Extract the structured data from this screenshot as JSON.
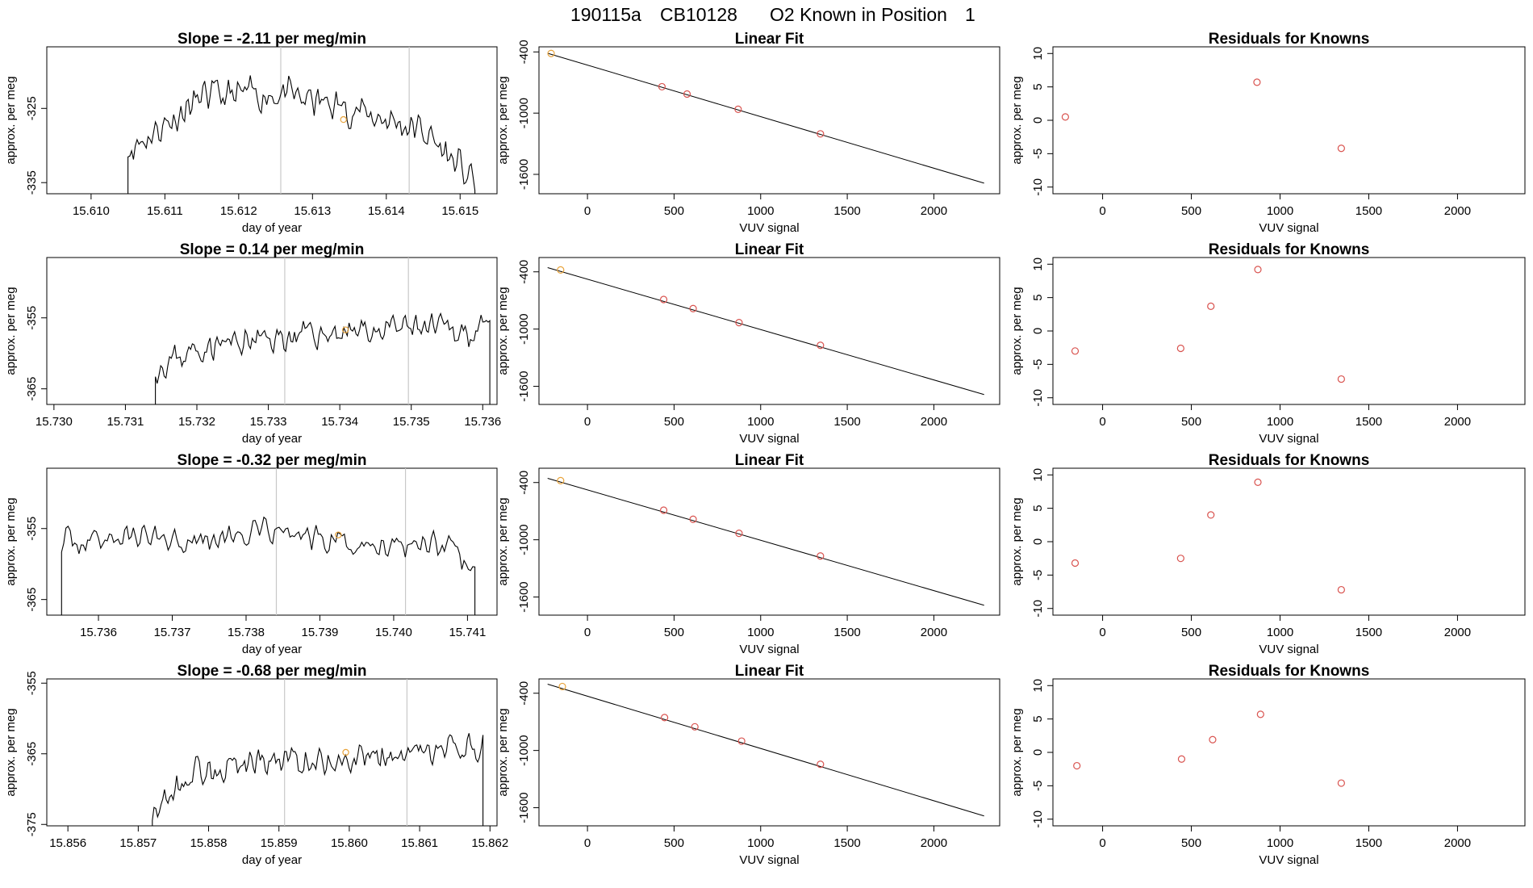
{
  "figure_title": {
    "sample": "190115a",
    "tank": "CB10128",
    "desc": "O2 Known in Position",
    "position": "1"
  },
  "colors": {
    "known_point": "#e8a33a",
    "fit_point": "#d9534f",
    "trace": "#000000",
    "marker_line": "#c8c8c8"
  },
  "chart_data": {
    "rows": [
      {
        "time": {
          "type": "line",
          "title": "Slope =  -2.11  per meg/min",
          "xlabel": "day of year",
          "ylabel": "approx. per meg",
          "xlim": [
            15.6094,
            15.6155
          ],
          "ylim": [
            -336.5,
            -316.7
          ],
          "xticks": [
            15.61,
            15.611,
            15.612,
            15.613,
            15.614,
            15.615
          ],
          "xtick_labels": [
            "15.610",
            "15.611",
            "15.612",
            "15.613",
            "15.614",
            "15.615"
          ],
          "yticks": [
            -325,
            -335
          ],
          "ytick_labels": [
            "-325",
            "-335"
          ],
          "vlines": [
            15.61257,
            15.61431
          ],
          "known_point": [
            15.61342,
            -326.5
          ],
          "trace_x": [
            15.6106,
            15.6115,
            15.6125,
            15.6135,
            15.6145,
            15.6152
          ],
          "trace_y": [
            -330,
            -323.5,
            -323,
            -325,
            -328,
            -335
          ],
          "trace_amp": 2.8,
          "trace_start": 15.6105,
          "trace_end": 15.6152,
          "trace_seed": 11
        },
        "fit": {
          "type": "scatter",
          "title": "Linear Fit",
          "xlabel": "VUV signal",
          "ylabel": "approx. per meg",
          "xlim": [
            -280,
            2380
          ],
          "ylim": [
            -1790,
            -350
          ],
          "xticks": [
            0,
            500,
            1000,
            1500,
            2000
          ],
          "xtick_labels": [
            "0",
            "500",
            "1000",
            "1500",
            "2000"
          ],
          "yticks": [
            -400,
            -1000,
            -1600
          ],
          "ytick_labels": [
            "-400",
            "-1000",
            "-1600"
          ],
          "line": [
            [
              -230,
              -413
            ],
            [
              2290,
              -1686
            ]
          ],
          "known_point": [
            -210,
            -415
          ],
          "points": [
            [
              430,
              -741
            ],
            [
              575,
              -813
            ],
            [
              870,
              -962
            ],
            [
              1345,
              -1203
            ]
          ]
        },
        "resid": {
          "type": "scatter",
          "title": "Residuals for Knowns",
          "xlabel": "VUV signal",
          "ylabel": "approx. per meg",
          "xlim": [
            -280,
            2380
          ],
          "ylim": [
            -11,
            11
          ],
          "xticks": [
            0,
            500,
            1000,
            1500,
            2000
          ],
          "xtick_labels": [
            "0",
            "500",
            "1000",
            "1500",
            "2000"
          ],
          "yticks": [
            10,
            5,
            0,
            -5,
            -10
          ],
          "ytick_labels": [
            "10",
            "5",
            "0",
            "-5",
            "-10"
          ],
          "points": [
            [
              -210,
              0.5
            ],
            [
              870,
              5.7
            ],
            [
              1345,
              -4.2
            ]
          ]
        }
      },
      {
        "time": {
          "type": "line",
          "title": "Slope =  0.14  per meg/min",
          "xlabel": "day of year",
          "ylabel": "approx. per meg",
          "xlim": [
            15.7299,
            15.7362
          ],
          "ylim": [
            -367.2,
            -346.5
          ],
          "xticks": [
            15.73,
            15.731,
            15.732,
            15.733,
            15.734,
            15.735,
            15.736
          ],
          "xtick_labels": [
            "15.730",
            "15.731",
            "15.732",
            "15.733",
            "15.734",
            "15.735",
            "15.736"
          ],
          "yticks": [
            -355,
            -365
          ],
          "ytick_labels": [
            "-355",
            "-365"
          ],
          "vlines": [
            15.73323,
            15.73496
          ],
          "known_point": [
            15.73408,
            -356.7
          ],
          "trace_x": [
            15.7314,
            15.7321,
            15.733,
            15.734,
            15.735,
            15.7361
          ],
          "trace_y": [
            -362,
            -359,
            -358,
            -357,
            -356.5,
            -357
          ],
          "trace_amp": 2.5,
          "trace_start": 15.73142,
          "trace_end": 15.7361,
          "trace_seed": 23
        },
        "fit": {
          "type": "scatter",
          "title": "Linear Fit",
          "xlabel": "VUV signal",
          "ylabel": "approx. per meg",
          "xlim": [
            -280,
            2380
          ],
          "ylim": [
            -1790,
            -250
          ],
          "xticks": [
            0,
            500,
            1000,
            1500,
            2000
          ],
          "xtick_labels": [
            "0",
            "500",
            "1000",
            "1500",
            "2000"
          ],
          "yticks": [
            -400,
            -1000,
            -1600
          ],
          "ytick_labels": [
            "-400",
            "-1000",
            "-1600"
          ],
          "line": [
            [
              -230,
              -356
            ],
            [
              2290,
              -1686
            ]
          ],
          "known_point": [
            -155,
            -380
          ],
          "points": [
            [
              440,
              -690
            ],
            [
              610,
              -785
            ],
            [
              875,
              -932
            ],
            [
              1345,
              -1170
            ]
          ]
        },
        "resid": {
          "type": "scatter",
          "title": "Residuals for Knowns",
          "xlabel": "VUV signal",
          "ylabel": "approx. per meg",
          "xlim": [
            -280,
            2380
          ],
          "ylim": [
            -11,
            11
          ],
          "xticks": [
            0,
            500,
            1000,
            1500,
            2000
          ],
          "xtick_labels": [
            "0",
            "500",
            "1000",
            "1500",
            "2000"
          ],
          "yticks": [
            10,
            5,
            0,
            -5,
            -10
          ],
          "ytick_labels": [
            "10",
            "5",
            "0",
            "-5",
            "-10"
          ],
          "points": [
            [
              -155,
              -3.0
            ],
            [
              440,
              -2.6
            ],
            [
              610,
              3.7
            ],
            [
              875,
              9.2
            ],
            [
              1345,
              -7.2
            ]
          ]
        }
      },
      {
        "time": {
          "type": "line",
          "title": "Slope =  -0.32  per meg/min",
          "xlabel": "day of year",
          "ylabel": "approx. per meg",
          "xlim": [
            15.7353,
            15.7414
          ],
          "ylim": [
            -367.2,
            -346.5
          ],
          "xticks": [
            15.736,
            15.737,
            15.738,
            15.739,
            15.74,
            15.741
          ],
          "xtick_labels": [
            "15.736",
            "15.737",
            "15.738",
            "15.739",
            "15.740",
            "15.741"
          ],
          "yticks": [
            -355,
            -365
          ],
          "ytick_labels": [
            "-355",
            "-365"
          ],
          "vlines": [
            15.73841,
            15.74016
          ],
          "known_point": [
            15.73925,
            -355.9
          ],
          "trace_x": [
            15.7355,
            15.7365,
            15.7375,
            15.7385,
            15.7395,
            15.7405,
            15.7411
          ],
          "trace_y": [
            -357,
            -356,
            -356.5,
            -355.5,
            -357.5,
            -356.5,
            -361
          ],
          "trace_amp": 2.4,
          "trace_start": 15.7355,
          "trace_end": 15.7411,
          "trace_seed": 37
        },
        "fit": {
          "type": "scatter",
          "title": "Linear Fit",
          "xlabel": "VUV signal",
          "ylabel": "approx. per meg",
          "xlim": [
            -280,
            2380
          ],
          "ylim": [
            -1790,
            -250
          ],
          "xticks": [
            0,
            500,
            1000,
            1500,
            2000
          ],
          "xtick_labels": [
            "0",
            "500",
            "1000",
            "1500",
            "2000"
          ],
          "yticks": [
            -400,
            -1000,
            -1600
          ],
          "ytick_labels": [
            "-400",
            "-1000",
            "-1600"
          ],
          "line": [
            [
              -230,
              -356
            ],
            [
              2290,
              -1686
            ]
          ],
          "known_point": [
            -155,
            -380
          ],
          "points": [
            [
              440,
              -690
            ],
            [
              610,
              -785
            ],
            [
              875,
              -932
            ],
            [
              1345,
              -1170
            ]
          ]
        },
        "resid": {
          "type": "scatter",
          "title": "Residuals for Knowns",
          "xlabel": "VUV signal",
          "ylabel": "approx. per meg",
          "xlim": [
            -280,
            2380
          ],
          "ylim": [
            -11,
            11
          ],
          "xticks": [
            0,
            500,
            1000,
            1500,
            2000
          ],
          "xtick_labels": [
            "0",
            "500",
            "1000",
            "1500",
            "2000"
          ],
          "yticks": [
            10,
            5,
            0,
            -5,
            -10
          ],
          "ytick_labels": [
            "10",
            "5",
            "0",
            "-5",
            "-10"
          ],
          "points": [
            [
              -155,
              -3.2
            ],
            [
              440,
              -2.5
            ],
            [
              610,
              4.0
            ],
            [
              875,
              8.9
            ],
            [
              1345,
              -7.2
            ]
          ]
        }
      },
      {
        "time": {
          "type": "line",
          "title": "Slope =  -0.68  per meg/min",
          "xlabel": "day of year",
          "ylabel": "approx. per meg",
          "xlim": [
            15.8557,
            15.8621
          ],
          "ylim": [
            -375.2,
            -354.4
          ],
          "xticks": [
            15.856,
            15.857,
            15.858,
            15.859,
            15.86,
            15.861,
            15.862
          ],
          "xtick_labels": [
            "15.856",
            "15.857",
            "15.858",
            "15.859",
            "15.860",
            "15.861",
            "15.862"
          ],
          "yticks": [
            -355,
            -365,
            -375
          ],
          "ytick_labels": [
            "-355",
            "-365",
            "-375"
          ],
          "vlines": [
            15.85908,
            15.86082
          ],
          "known_point": [
            15.85995,
            -364.8
          ],
          "trace_x": [
            15.8572,
            15.8578,
            15.8588,
            15.8598,
            15.8608,
            15.8619
          ],
          "trace_y": [
            -373,
            -367.5,
            -366,
            -366,
            -365.5,
            -364
          ],
          "trace_amp": 2.6,
          "trace_start": 15.8572,
          "trace_end": 15.8619,
          "trace_seed": 53
        },
        "fit": {
          "type": "scatter",
          "title": "Linear Fit",
          "xlabel": "VUV signal",
          "ylabel": "approx. per meg",
          "xlim": [
            -280,
            2380
          ],
          "ylim": [
            -1790,
            -250
          ],
          "xticks": [
            0,
            500,
            1000,
            1500,
            2000
          ],
          "xtick_labels": [
            "0",
            "500",
            "1000",
            "1500",
            "2000"
          ],
          "yticks": [
            -400,
            -1000,
            -1600
          ],
          "ytick_labels": [
            "-400",
            "-1000",
            "-1600"
          ],
          "line": [
            [
              -230,
              -305
            ],
            [
              2290,
              -1686
            ]
          ],
          "known_point": [
            -145,
            -330
          ],
          "points": [
            [
              445,
              -655
            ],
            [
              620,
              -752
            ],
            [
              890,
              -902
            ],
            [
              1345,
              -1145
            ]
          ]
        },
        "resid": {
          "type": "scatter",
          "title": "Residuals for Knowns",
          "xlabel": "VUV signal",
          "ylabel": "approx. per meg",
          "xlim": [
            -280,
            2380
          ],
          "ylim": [
            -11,
            11
          ],
          "xticks": [
            0,
            500,
            1000,
            1500,
            2000
          ],
          "xtick_labels": [
            "0",
            "500",
            "1000",
            "1500",
            "2000"
          ],
          "yticks": [
            10,
            5,
            0,
            -5,
            -10
          ],
          "ytick_labels": [
            "10",
            "5",
            "0",
            "-5",
            "-10"
          ],
          "points": [
            [
              -145,
              -2.0
            ],
            [
              445,
              -1.0
            ],
            [
              620,
              1.9
            ],
            [
              890,
              5.7
            ],
            [
              1345,
              -4.6
            ]
          ]
        }
      }
    ]
  }
}
